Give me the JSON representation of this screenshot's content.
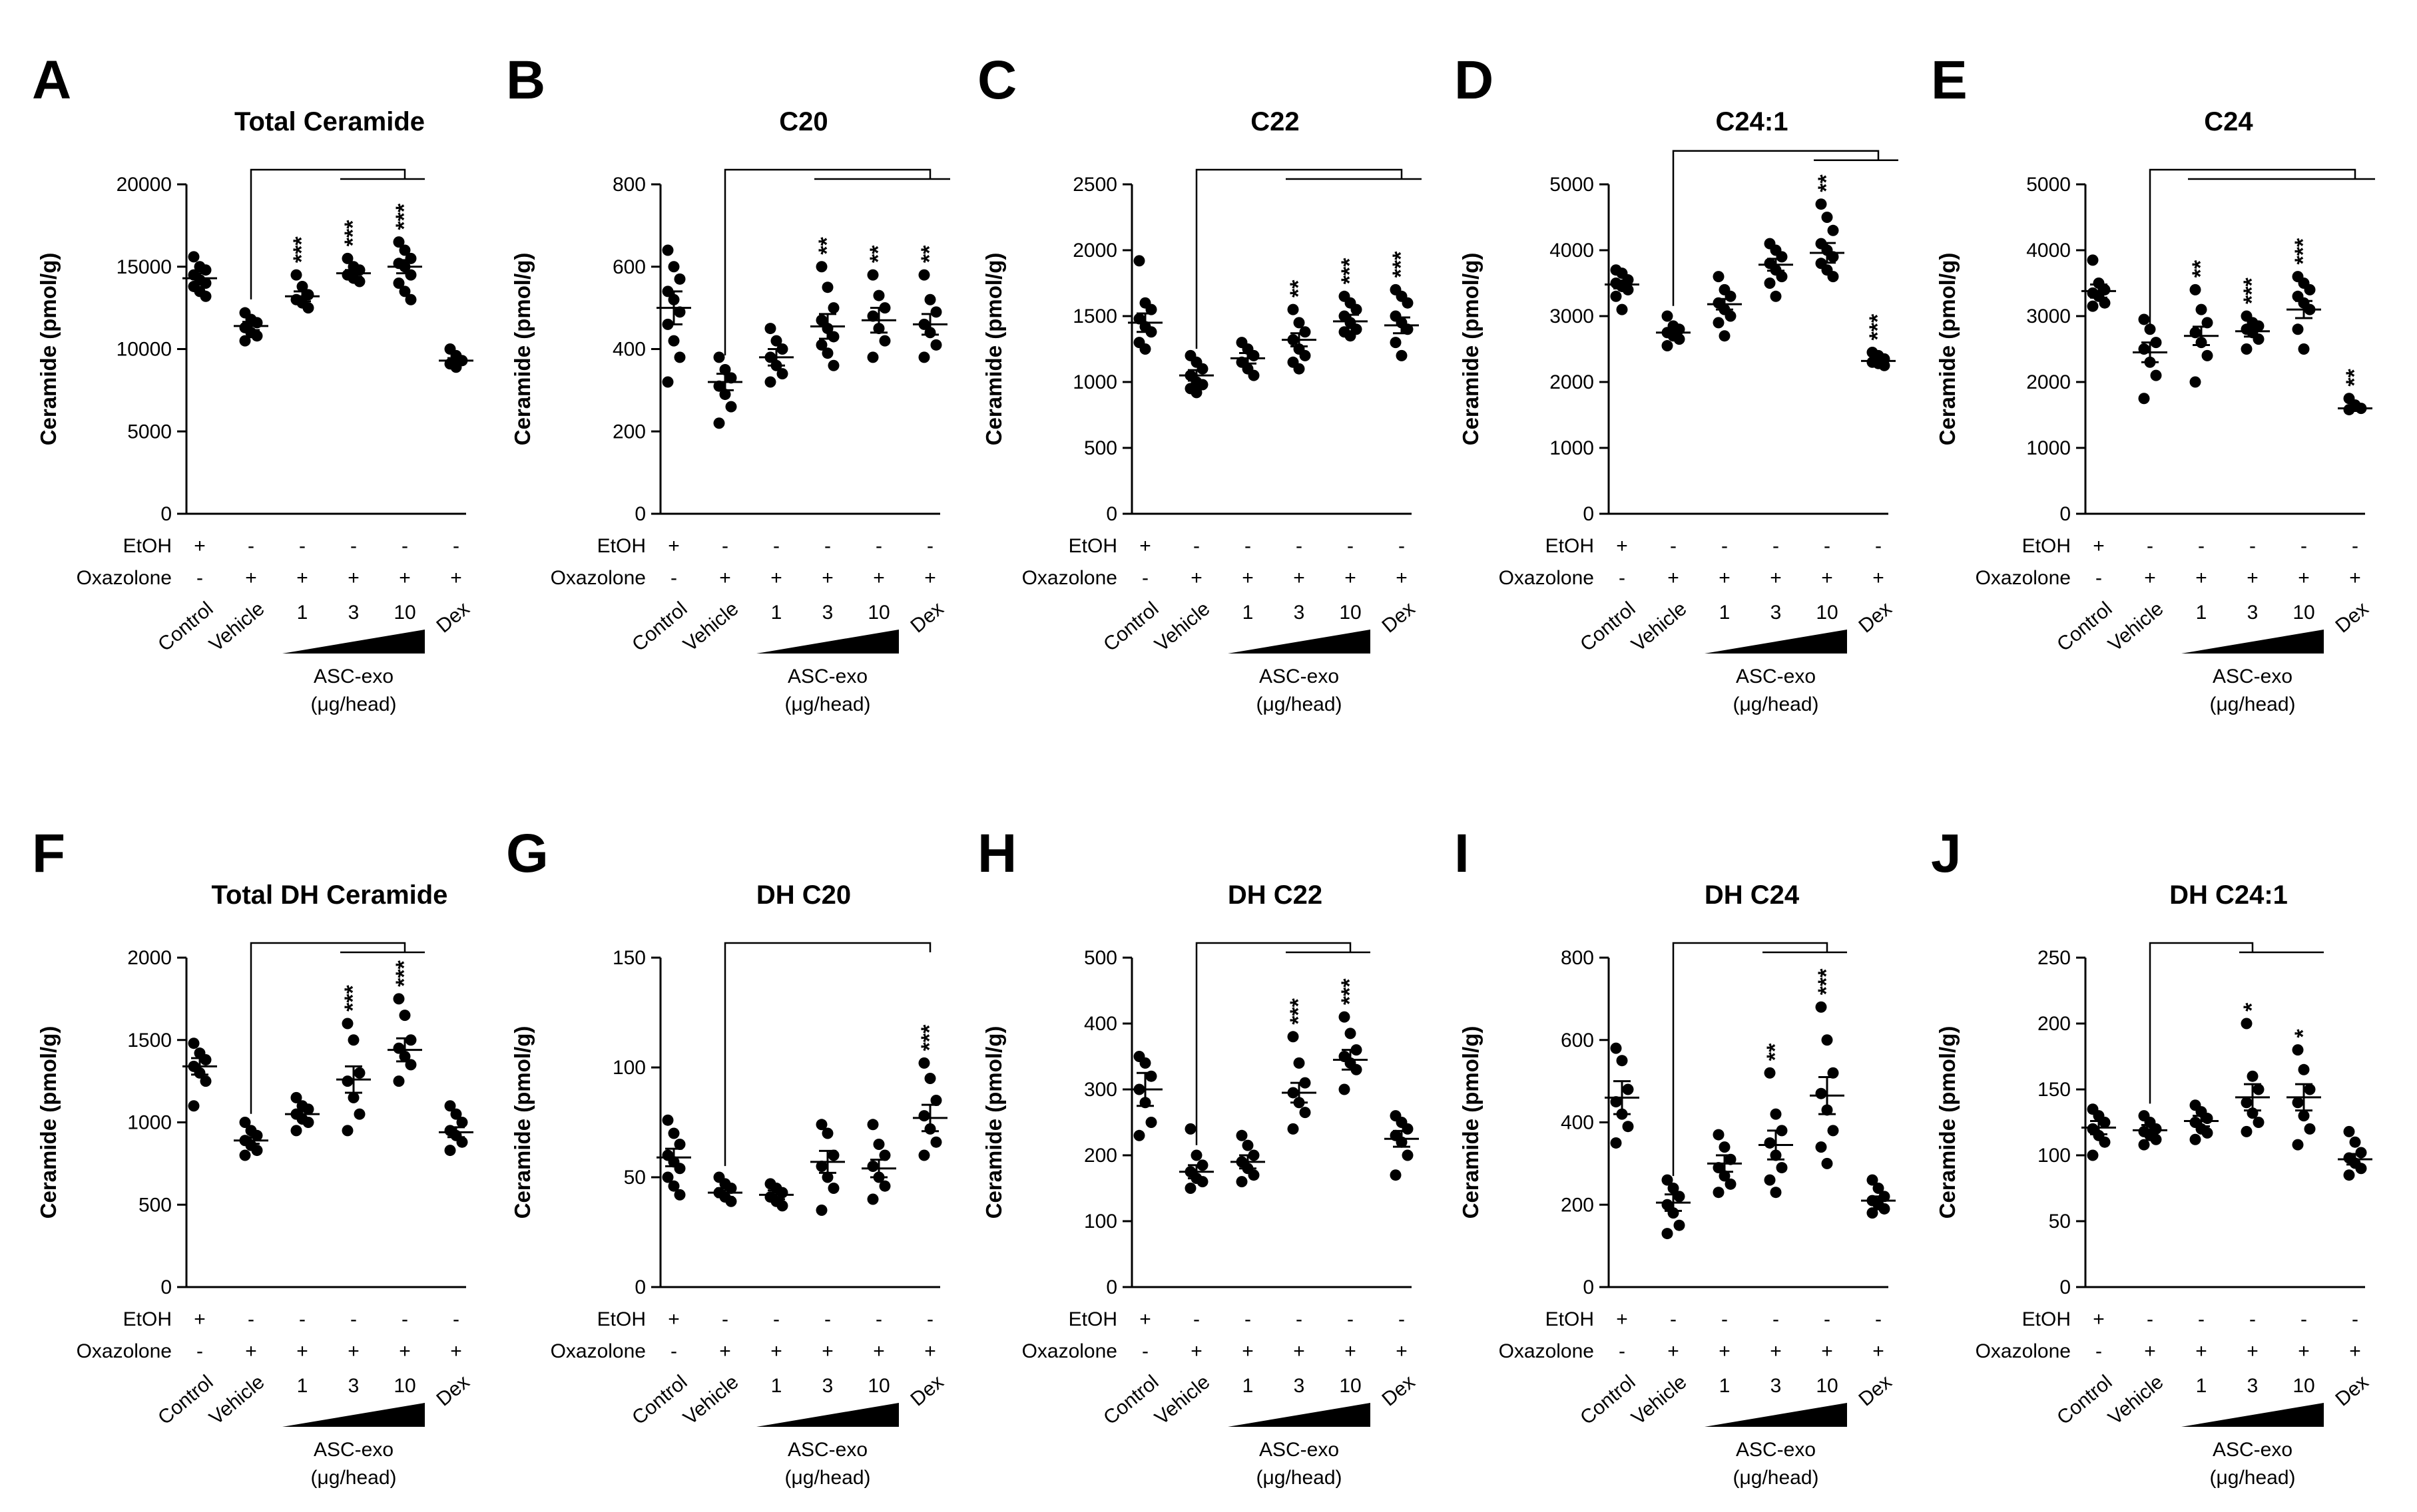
{
  "chart_data": [
    {
      "letter": "A",
      "title": "Total Ceramide",
      "type": "scatter",
      "ylabel": "Ceramide (pmol/g)",
      "ylim": [
        0,
        20000
      ],
      "yticks": [
        0,
        5000,
        10000,
        15000,
        20000
      ],
      "categories": [
        "Control",
        "Vehicle",
        "1",
        "3",
        "10",
        "Dex"
      ],
      "ethanol": [
        "+",
        "-",
        "-",
        "-",
        "-",
        "-"
      ],
      "oxazolone": [
        "-",
        "+",
        "+",
        "+",
        "+",
        "+"
      ],
      "dose_label": "ASC-exo",
      "dose_unit": "(μg/head)",
      "means": [
        14300,
        11400,
        13200,
        14600,
        15000,
        9300
      ],
      "sem": [
        300,
        250,
        300,
        200,
        400,
        150
      ],
      "points": [
        [
          15600,
          15000,
          14800,
          14500,
          14200,
          14000,
          13800,
          13500,
          13200
        ],
        [
          12200,
          11800,
          11600,
          11300,
          11000,
          10800,
          10500
        ],
        [
          14500,
          13800,
          13300,
          13000,
          12800,
          12500
        ],
        [
          15500,
          15000,
          14800,
          14500,
          14300,
          14100
        ],
        [
          16500,
          16000,
          15500,
          15200,
          15000,
          14500,
          14000,
          13500,
          13000
        ],
        [
          10000,
          9600,
          9300,
          9100,
          8900
        ]
      ],
      "significance": [
        "",
        "",
        "***",
        "***",
        "***",
        ""
      ],
      "brackets": [
        {
          "from": 1,
          "to": 4,
          "span": [
            3,
            4
          ]
        }
      ]
    },
    {
      "letter": "B",
      "title": "C20",
      "type": "scatter",
      "ylabel": "Ceramide (pmol/g)",
      "ylim": [
        0,
        800
      ],
      "yticks": [
        0,
        200,
        400,
        600,
        800
      ],
      "categories": [
        "Control",
        "Vehicle",
        "1",
        "3",
        "10",
        "Dex"
      ],
      "ethanol": [
        "+",
        "-",
        "-",
        "-",
        "-",
        "-"
      ],
      "oxazolone": [
        "-",
        "+",
        "+",
        "+",
        "+",
        "+"
      ],
      "dose_label": "ASC-exo",
      "dose_unit": "(μg/head)",
      "means": [
        500,
        320,
        380,
        455,
        470,
        460
      ],
      "sem": [
        40,
        20,
        20,
        30,
        30,
        25
      ],
      "points": [
        [
          640,
          600,
          570,
          540,
          520,
          490,
          460,
          420,
          380,
          320
        ],
        [
          380,
          350,
          330,
          310,
          290,
          260,
          220
        ],
        [
          450,
          420,
          400,
          380,
          360,
          340,
          320
        ],
        [
          600,
          550,
          500,
          470,
          450,
          430,
          410,
          390,
          360
        ],
        [
          580,
          530,
          500,
          480,
          450,
          420,
          380
        ],
        [
          580,
          520,
          490,
          460,
          440,
          410,
          380
        ]
      ],
      "significance": [
        "",
        "",
        "",
        "**",
        "**",
        "**"
      ],
      "brackets": [
        {
          "from": 1,
          "to": 5,
          "span": [
            3,
            5
          ]
        }
      ]
    },
    {
      "letter": "C",
      "title": "C22",
      "type": "scatter",
      "ylabel": "Ceramide (pmol/g)",
      "ylim": [
        0,
        2500
      ],
      "yticks": [
        0,
        500,
        1000,
        1500,
        2000,
        2500
      ],
      "categories": [
        "Control",
        "Vehicle",
        "1",
        "3",
        "10",
        "Dex"
      ],
      "ethanol": [
        "+",
        "-",
        "-",
        "-",
        "-",
        "-"
      ],
      "oxazolone": [
        "-",
        "+",
        "+",
        "+",
        "+",
        "+"
      ],
      "dose_label": "ASC-exo",
      "dose_unit": "(μg/head)",
      "means": [
        1450,
        1050,
        1180,
        1320,
        1460,
        1430
      ],
      "sem": [
        70,
        40,
        40,
        50,
        50,
        60
      ],
      "points": [
        [
          1920,
          1600,
          1550,
          1480,
          1420,
          1380,
          1300,
          1250
        ],
        [
          1200,
          1150,
          1100,
          1050,
          1000,
          980,
          950,
          920
        ],
        [
          1300,
          1250,
          1200,
          1150,
          1100,
          1050
        ],
        [
          1550,
          1450,
          1380,
          1320,
          1250,
          1200,
          1150,
          1100
        ],
        [
          1650,
          1600,
          1550,
          1500,
          1450,
          1400,
          1380,
          1350
        ],
        [
          1700,
          1650,
          1600,
          1500,
          1450,
          1400,
          1300,
          1200
        ]
      ],
      "significance": [
        "",
        "",
        "",
        "**",
        "***",
        "***"
      ],
      "brackets": [
        {
          "from": 1,
          "to": 5,
          "span": [
            3,
            5
          ]
        }
      ]
    },
    {
      "letter": "D",
      "title": "C24:1",
      "type": "scatter",
      "ylabel": "Ceramide (pmol/g)",
      "ylim": [
        0,
        5000
      ],
      "yticks": [
        0,
        1000,
        2000,
        3000,
        4000,
        5000
      ],
      "categories": [
        "Control",
        "Vehicle",
        "1",
        "3",
        "10",
        "Dex"
      ],
      "ethanol": [
        "+",
        "-",
        "-",
        "-",
        "-",
        "-"
      ],
      "oxazolone": [
        "-",
        "+",
        "+",
        "+",
        "+",
        "+"
      ],
      "dose_label": "ASC-exo",
      "dose_unit": "(μg/head)",
      "means": [
        3480,
        2750,
        3180,
        3780,
        3960,
        2320
      ],
      "sem": [
        60,
        60,
        80,
        90,
        150,
        30
      ],
      "points": [
        [
          3700,
          3650,
          3550,
          3500,
          3450,
          3400,
          3300,
          3100
        ],
        [
          3000,
          2850,
          2800,
          2750,
          2700,
          2650,
          2550
        ],
        [
          3600,
          3400,
          3300,
          3200,
          3100,
          3000,
          2900,
          2700
        ],
        [
          4100,
          4000,
          3900,
          3800,
          3700,
          3600,
          3500,
          3300
        ],
        [
          4700,
          4500,
          4300,
          4100,
          4000,
          3900,
          3800,
          3700,
          3600
        ],
        [
          2450,
          2400,
          2350,
          2300,
          2280,
          2250
        ]
      ],
      "significance": [
        "",
        "",
        "",
        "",
        "**",
        "***"
      ],
      "brackets": [
        {
          "from": 1,
          "to": 5,
          "span": [
            4,
            5
          ]
        }
      ]
    },
    {
      "letter": "E",
      "title": "C24",
      "type": "scatter",
      "ylabel": "Ceramide (pmol/g)",
      "ylim": [
        0,
        5000
      ],
      "yticks": [
        0,
        1000,
        2000,
        3000,
        4000,
        5000
      ],
      "categories": [
        "Control",
        "Vehicle",
        "1",
        "3",
        "10",
        "Dex"
      ],
      "ethanol": [
        "+",
        "-",
        "-",
        "-",
        "-",
        "-"
      ],
      "oxazolone": [
        "-",
        "+",
        "+",
        "+",
        "+",
        "+"
      ],
      "dose_label": "ASC-exo",
      "dose_unit": "(μg/head)",
      "means": [
        3380,
        2450,
        2700,
        2770,
        3100,
        1600
      ],
      "sem": [
        100,
        150,
        140,
        80,
        130,
        40
      ],
      "points": [
        [
          3850,
          3500,
          3400,
          3350,
          3300,
          3200,
          3150
        ],
        [
          2950,
          2800,
          2600,
          2500,
          2300,
          2100,
          1750
        ],
        [
          3400,
          3100,
          2900,
          2750,
          2600,
          2400,
          2000
        ],
        [
          3000,
          2900,
          2850,
          2800,
          2750,
          2650,
          2500
        ],
        [
          3600,
          3500,
          3400,
          3300,
          3200,
          3100,
          2800,
          2500
        ],
        [
          1750,
          1650,
          1600,
          1580
        ]
      ],
      "significance": [
        "",
        "",
        "**",
        "***",
        "***",
        "**"
      ],
      "brackets": [
        {
          "from": 1,
          "to": 5,
          "span": [
            2,
            5
          ]
        }
      ]
    },
    {
      "letter": "F",
      "title": "Total DH Ceramide",
      "type": "scatter",
      "ylabel": "Ceramide (pmol/g)",
      "ylim": [
        0,
        2000
      ],
      "yticks": [
        0,
        500,
        1000,
        1500,
        2000
      ],
      "categories": [
        "Control",
        "Vehicle",
        "1",
        "3",
        "10",
        "Dex"
      ],
      "ethanol": [
        "+",
        "-",
        "-",
        "-",
        "-",
        "-"
      ],
      "oxazolone": [
        "-",
        "+",
        "+",
        "+",
        "+",
        "+"
      ],
      "dose_label": "ASC-exo",
      "dose_unit": "(μg/head)",
      "means": [
        1340,
        890,
        1050,
        1260,
        1440,
        940
      ],
      "sem": [
        50,
        20,
        25,
        80,
        70,
        30
      ],
      "points": [
        [
          1480,
          1420,
          1380,
          1340,
          1300,
          1250,
          1100
        ],
        [
          1000,
          950,
          920,
          890,
          860,
          830,
          800
        ],
        [
          1150,
          1100,
          1080,
          1050,
          1020,
          1000,
          950
        ],
        [
          1600,
          1500,
          1300,
          1250,
          1150,
          1050,
          950
        ],
        [
          1750,
          1650,
          1500,
          1450,
          1400,
          1350,
          1250
        ],
        [
          1100,
          1050,
          1000,
          950,
          920,
          880,
          830
        ]
      ],
      "significance": [
        "",
        "",
        "",
        "***",
        "***",
        ""
      ],
      "brackets": [
        {
          "from": 1,
          "to": 4,
          "span": [
            3,
            4
          ]
        }
      ]
    },
    {
      "letter": "G",
      "title": "DH C20",
      "type": "scatter",
      "ylabel": "Ceramide (pmol/g)",
      "ylim": [
        0,
        150
      ],
      "yticks": [
        0,
        50,
        100,
        150
      ],
      "categories": [
        "Control",
        "Vehicle",
        "1",
        "3",
        "10",
        "Dex"
      ],
      "ethanol": [
        "+",
        "-",
        "-",
        "-",
        "-",
        "-"
      ],
      "oxazolone": [
        "-",
        "+",
        "+",
        "+",
        "+",
        "+"
      ],
      "dose_label": "ASC-exo",
      "dose_unit": "(μg/head)",
      "means": [
        59,
        43,
        42,
        57,
        54,
        77
      ],
      "sem": [
        4,
        2,
        2,
        5,
        4,
        6
      ],
      "points": [
        [
          76,
          70,
          65,
          60,
          57,
          54,
          50,
          46,
          42
        ],
        [
          50,
          47,
          45,
          43,
          41,
          39
        ],
        [
          47,
          45,
          43,
          41,
          39,
          37
        ],
        [
          74,
          70,
          60,
          55,
          50,
          45,
          35
        ],
        [
          74,
          65,
          60,
          55,
          50,
          46,
          40
        ],
        [
          102,
          95,
          85,
          78,
          72,
          66,
          60
        ]
      ],
      "significance": [
        "",
        "",
        "",
        "",
        "",
        "***"
      ],
      "brackets": [
        {
          "from": 1,
          "to": 5,
          "span": null
        }
      ]
    },
    {
      "letter": "H",
      "title": "DH C22",
      "type": "scatter",
      "ylabel": "Ceramide (pmol/g)",
      "ylim": [
        0,
        500
      ],
      "yticks": [
        0,
        100,
        200,
        300,
        400,
        500
      ],
      "categories": [
        "Control",
        "Vehicle",
        "1",
        "3",
        "10",
        "Dex"
      ],
      "ethanol": [
        "+",
        "-",
        "-",
        "-",
        "-",
        "-"
      ],
      "oxazolone": [
        "-",
        "+",
        "+",
        "+",
        "+",
        "+"
      ],
      "dose_label": "ASC-exo",
      "dose_unit": "(μg/head)",
      "means": [
        300,
        175,
        190,
        295,
        345,
        225
      ],
      "sem": [
        25,
        10,
        10,
        15,
        15,
        12
      ],
      "points": [
        [
          350,
          340,
          320,
          300,
          280,
          250,
          230
        ],
        [
          240,
          200,
          185,
          175,
          165,
          160,
          150
        ],
        [
          230,
          215,
          200,
          190,
          180,
          170,
          160
        ],
        [
          380,
          340,
          310,
          295,
          280,
          265,
          240
        ],
        [
          410,
          385,
          360,
          350,
          340,
          330,
          300
        ],
        [
          260,
          250,
          240,
          230,
          220,
          200,
          170
        ]
      ],
      "significance": [
        "",
        "",
        "",
        "***",
        "***",
        ""
      ],
      "brackets": [
        {
          "from": 1,
          "to": 4,
          "span": [
            3,
            4
          ]
        }
      ]
    },
    {
      "letter": "I",
      "title": "DH C24",
      "type": "scatter",
      "ylabel": "Ceramide (pmol/g)",
      "ylim": [
        0,
        800
      ],
      "yticks": [
        0,
        200,
        400,
        600,
        800
      ],
      "categories": [
        "Control",
        "Vehicle",
        "1",
        "3",
        "10",
        "Dex"
      ],
      "ethanol": [
        "+",
        "-",
        "-",
        "-",
        "-",
        "-"
      ],
      "oxazolone": [
        "-",
        "+",
        "+",
        "+",
        "+",
        "+"
      ],
      "dose_label": "ASC-exo",
      "dose_unit": "(μg/head)",
      "means": [
        460,
        205,
        300,
        345,
        465,
        210
      ],
      "sem": [
        40,
        20,
        20,
        35,
        45,
        10
      ],
      "points": [
        [
          580,
          550,
          480,
          450,
          420,
          390,
          350
        ],
        [
          260,
          240,
          220,
          200,
          180,
          150,
          130
        ],
        [
          370,
          340,
          310,
          290,
          270,
          250,
          230
        ],
        [
          520,
          420,
          380,
          350,
          320,
          290,
          260,
          230
        ],
        [
          680,
          600,
          520,
          470,
          430,
          380,
          340,
          300
        ],
        [
          260,
          240,
          220,
          210,
          200,
          190,
          180
        ]
      ],
      "significance": [
        "",
        "",
        "",
        "**",
        "***",
        ""
      ],
      "brackets": [
        {
          "from": 1,
          "to": 4,
          "span": [
            3,
            4
          ]
        }
      ]
    },
    {
      "letter": "J",
      "title": "DH C24:1",
      "type": "scatter",
      "ylabel": "Ceramide (pmol/g)",
      "ylim": [
        0,
        250
      ],
      "yticks": [
        0,
        50,
        100,
        150,
        200,
        250
      ],
      "categories": [
        "Control",
        "Vehicle",
        "1",
        "3",
        "10",
        "Dex"
      ],
      "ethanol": [
        "+",
        "-",
        "-",
        "-",
        "-",
        "-"
      ],
      "oxazolone": [
        "-",
        "+",
        "+",
        "+",
        "+",
        "+"
      ],
      "dose_label": "ASC-exo",
      "dose_unit": "(μg/head)",
      "means": [
        121,
        119,
        126,
        144,
        144,
        97
      ],
      "sem": [
        5,
        4,
        4,
        10,
        10,
        4
      ],
      "points": [
        [
          135,
          130,
          125,
          120,
          115,
          110,
          100
        ],
        [
          130,
          125,
          120,
          118,
          115,
          112,
          108
        ],
        [
          138,
          133,
          128,
          125,
          120,
          117,
          112
        ],
        [
          200,
          160,
          150,
          140,
          132,
          125,
          118
        ],
        [
          180,
          165,
          150,
          140,
          130,
          120,
          108
        ],
        [
          118,
          110,
          102,
          98,
          94,
          90,
          85
        ]
      ],
      "significance": [
        "",
        "",
        "",
        "*",
        "*",
        ""
      ],
      "brackets": [
        {
          "from": 1,
          "to": 3,
          "span": [
            3,
            4
          ]
        }
      ]
    }
  ],
  "row_labels": {
    "ethanol": "EtOH",
    "oxazolone": "Oxazolone"
  }
}
